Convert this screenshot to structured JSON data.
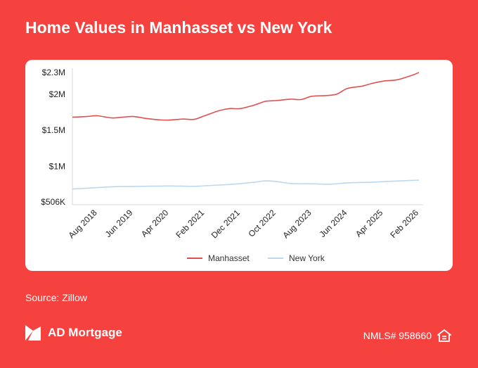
{
  "page": {
    "title": "Home Values in Manhasset vs New York",
    "source": "Source: Zillow",
    "brand": "AD Mortgage",
    "nmls": "NMLS# 958660",
    "brand_icon": "ad-mortgage-logo-icon",
    "eho_icon": "equal-housing-opportunity-icon",
    "colors": {
      "background": "#f5423f",
      "card": "#ffffff"
    }
  },
  "chart_data": {
    "type": "line",
    "title": "Home Values in Manhasset vs New York",
    "xlabel": "",
    "ylabel": "",
    "x_start": "2018-01",
    "x_end": "2026-02",
    "tick_labels": [
      "Aug 2018",
      "Jun 2019",
      "Apr 2020",
      "Feb 2021",
      "Dec 2021",
      "Oct 2022",
      "Aug 2023",
      "Jun 2024",
      "Apr 2025",
      "Feb 2026"
    ],
    "tick_dates": [
      "2018-08",
      "2019-06",
      "2020-04",
      "2021-02",
      "2021-12",
      "2022-10",
      "2023-08",
      "2024-06",
      "2025-04",
      "2026-02"
    ],
    "y_ticks": [
      {
        "value": 2300000,
        "label": "$2.3M"
      },
      {
        "value": 2000000,
        "label": "$2M"
      },
      {
        "value": 1500000,
        "label": "$1.5M"
      },
      {
        "value": 1000000,
        "label": "$1M"
      },
      {
        "value": 506000,
        "label": "$506K"
      }
    ],
    "ylim": [
      506000,
      2300000
    ],
    "grid": false,
    "legend_position": "bottom",
    "series": [
      {
        "name": "Manhasset",
        "color": "#e05050",
        "points": [
          [
            "2018-01",
            1680000
          ],
          [
            "2018-05",
            1690000
          ],
          [
            "2018-08",
            1700000
          ],
          [
            "2018-12",
            1670000
          ],
          [
            "2019-03",
            1680000
          ],
          [
            "2019-06",
            1690000
          ],
          [
            "2019-10",
            1660000
          ],
          [
            "2020-01",
            1645000
          ],
          [
            "2020-04",
            1640000
          ],
          [
            "2020-08",
            1655000
          ],
          [
            "2020-11",
            1650000
          ],
          [
            "2021-02",
            1700000
          ],
          [
            "2021-06",
            1770000
          ],
          [
            "2021-09",
            1800000
          ],
          [
            "2021-12",
            1800000
          ],
          [
            "2022-04",
            1850000
          ],
          [
            "2022-07",
            1900000
          ],
          [
            "2022-10",
            1910000
          ],
          [
            "2023-02",
            1930000
          ],
          [
            "2023-05",
            1925000
          ],
          [
            "2023-08",
            1970000
          ],
          [
            "2023-12",
            1980000
          ],
          [
            "2024-03",
            2000000
          ],
          [
            "2024-06",
            2080000
          ],
          [
            "2024-10",
            2110000
          ],
          [
            "2025-01",
            2150000
          ],
          [
            "2025-04",
            2180000
          ],
          [
            "2025-08",
            2200000
          ],
          [
            "2025-12",
            2260000
          ],
          [
            "2026-02",
            2300000
          ]
        ]
      },
      {
        "name": "New York",
        "color": "#bcd8ee",
        "points": [
          [
            "2018-01",
            685000
          ],
          [
            "2018-08",
            705000
          ],
          [
            "2019-01",
            718000
          ],
          [
            "2019-08",
            722000
          ],
          [
            "2020-04",
            727000
          ],
          [
            "2020-11",
            722000
          ],
          [
            "2021-02",
            730000
          ],
          [
            "2021-08",
            745000
          ],
          [
            "2021-12",
            760000
          ],
          [
            "2022-04",
            780000
          ],
          [
            "2022-07",
            798000
          ],
          [
            "2022-10",
            790000
          ],
          [
            "2023-02",
            762000
          ],
          [
            "2023-08",
            758000
          ],
          [
            "2024-01",
            752000
          ],
          [
            "2024-06",
            770000
          ],
          [
            "2025-01",
            780000
          ],
          [
            "2025-06",
            792000
          ],
          [
            "2026-02",
            808000
          ]
        ]
      }
    ]
  }
}
